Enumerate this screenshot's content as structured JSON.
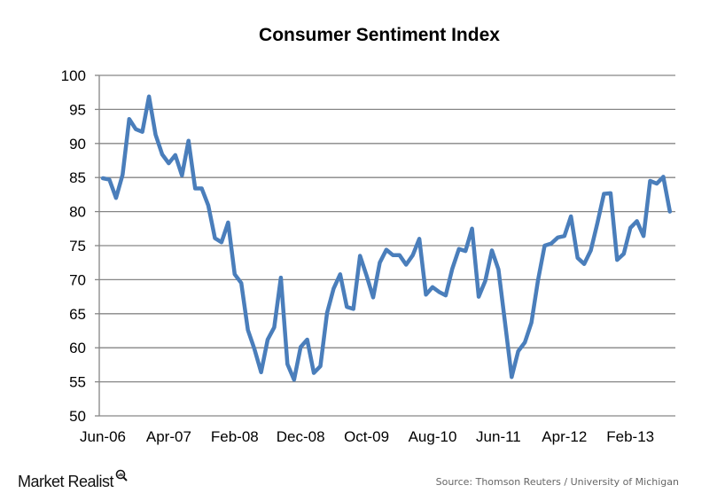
{
  "chart_data": {
    "type": "line",
    "title": "Consumer Sentiment Index",
    "xlabel": "",
    "ylabel": "",
    "ylim": [
      50,
      100
    ],
    "yticks": [
      50,
      55,
      60,
      65,
      70,
      75,
      80,
      85,
      90,
      95,
      100
    ],
    "xtick_labels": [
      "Jun-06",
      "Apr-07",
      "Feb-08",
      "Dec-08",
      "Oct-09",
      "Aug-10",
      "Jun-11",
      "Apr-12",
      "Feb-13"
    ],
    "x_start": "Jun-06",
    "x_end": "Aug-13",
    "grid": true,
    "line_color": "#4a7ebb",
    "series": [
      {
        "values": [
          84.9,
          84.7,
          82.0,
          85.4,
          93.6,
          92.1,
          91.7,
          96.9,
          91.3,
          88.4,
          87.1,
          88.3,
          85.3,
          90.4,
          83.4,
          83.4,
          80.9,
          76.1,
          75.5,
          78.4,
          70.8,
          69.5,
          62.6,
          59.8,
          56.4,
          61.2,
          63.0,
          70.3,
          57.6,
          55.3,
          60.1,
          61.2,
          56.3,
          57.3,
          65.1,
          68.7,
          70.8,
          66.0,
          65.7,
          73.5,
          70.6,
          67.4,
          72.5,
          74.4,
          73.6,
          73.6,
          72.2,
          73.6,
          76.0,
          67.8,
          68.9,
          68.2,
          67.7,
          71.6,
          74.5,
          74.2,
          77.5,
          67.5,
          69.8,
          74.3,
          71.5,
          63.7,
          55.7,
          59.5,
          60.8,
          63.7,
          69.9,
          75.0,
          75.3,
          76.2,
          76.4,
          79.3,
          73.2,
          72.3,
          74.3,
          78.3,
          82.6,
          82.7,
          72.9,
          73.8,
          77.6,
          78.6,
          76.4,
          84.5,
          84.1,
          85.1,
          80.0
        ]
      }
    ]
  },
  "footer": {
    "brand": "Market Realist",
    "source": "Source: Thomson Reuters / University of Michigan"
  }
}
